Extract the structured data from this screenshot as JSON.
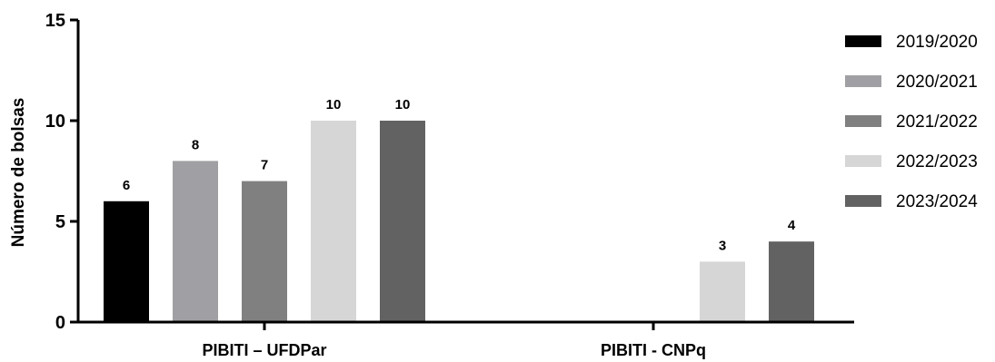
{
  "chart_data": {
    "type": "bar",
    "ylabel": "Número de bolsas",
    "xlabel": "",
    "ylim": [
      0,
      15
    ],
    "yticks": [
      0,
      5,
      10,
      15
    ],
    "grid": false,
    "legend_position": "right",
    "categories": [
      "PIBITI – UFDPar",
      "PIBITI - CNPq"
    ],
    "series": [
      {
        "name": "2019/2020",
        "color": "#000000",
        "values": [
          6,
          null
        ],
        "labels": [
          "6",
          ""
        ]
      },
      {
        "name": "2020/2021",
        "color": "#a0a0a4",
        "values": [
          8,
          null
        ],
        "labels": [
          "8",
          ""
        ]
      },
      {
        "name": "2021/2022",
        "color": "#808080",
        "values": [
          7,
          null
        ],
        "labels": [
          "7",
          ""
        ]
      },
      {
        "name": "2022/2023",
        "color": "#d6d6d6",
        "values": [
          10,
          3
        ],
        "labels": [
          "10",
          "3"
        ]
      },
      {
        "name": "2023/2024",
        "color": "#626262",
        "values": [
          10,
          4
        ],
        "labels": [
          "10",
          "4"
        ]
      }
    ]
  }
}
